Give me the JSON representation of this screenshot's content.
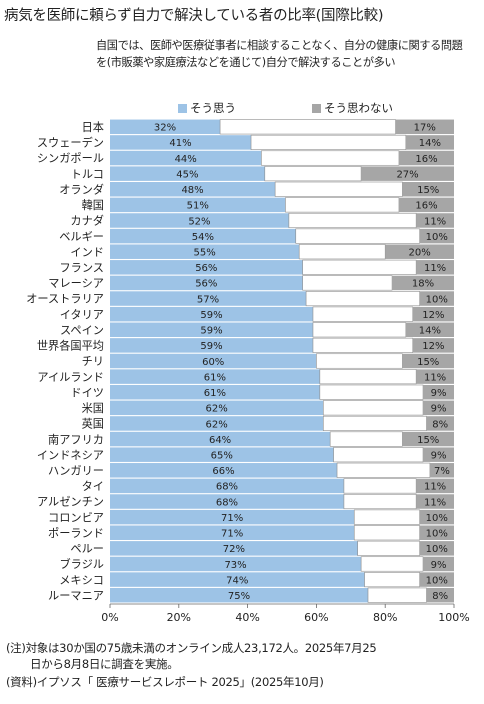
{
  "title": "病気を医師に頼らず自力で解決している者の比率(国際比較)",
  "subtitle": "自国では、医師や医療従事者に相談することなく、自分の健康に関する問題を(市販薬や家庭療法などを通じて)自分で解決することが多い",
  "footnotes": [
    "(注)対象は30か国の75歳未満のオンライン成人23,172人。2025年7月25",
    "日から8月8日に調査を実施。",
    "(資料)イプソス「 医療サービスレポート 2025」(2025年10月)"
  ],
  "colors": {
    "agree": "#9dc3e6",
    "disagree": "#a6a6a6",
    "neutral": "#ffffff",
    "border": "#8c8c8c"
  },
  "chart_data": {
    "type": "bar",
    "orientation": "horizontal",
    "stacked": true,
    "categories": [
      "日本",
      "スウェーデン",
      "シンガポール",
      "トルコ",
      "オランダ",
      "韓国",
      "カナダ",
      "ベルギー",
      "インド",
      "フランス",
      "マレーシア",
      "オーストラリア",
      "イタリア",
      "スペイン",
      "世界各国平均",
      "チリ",
      "アイルランド",
      "ドイツ",
      "米国",
      "英国",
      "南アフリカ",
      "インドネシア",
      "ハンガリー",
      "タイ",
      "アルゼンチン",
      "コロンビア",
      "ポーランド",
      "ペルー",
      "ブラジル",
      "メキシコ",
      "ルーマニア"
    ],
    "series": [
      {
        "name": "そう思う",
        "values": [
          32,
          41,
          44,
          45,
          48,
          51,
          52,
          54,
          55,
          56,
          56,
          57,
          59,
          59,
          59,
          60,
          61,
          61,
          62,
          62,
          64,
          65,
          66,
          68,
          68,
          71,
          71,
          72,
          73,
          74,
          75
        ],
        "label_suffix": "%"
      },
      {
        "name": "そう思わない",
        "values": [
          17,
          14,
          16,
          27,
          15,
          16,
          11,
          10,
          20,
          11,
          18,
          10,
          12,
          14,
          12,
          15,
          11,
          9,
          9,
          8,
          15,
          9,
          7,
          11,
          11,
          10,
          10,
          10,
          9,
          10,
          8
        ],
        "label_suffix": "%"
      }
    ],
    "xlim": [
      0,
      100
    ],
    "xticks": [
      "0%",
      "20%",
      "40%",
      "60%",
      "80%",
      "100%"
    ],
    "legend_position": "top"
  }
}
